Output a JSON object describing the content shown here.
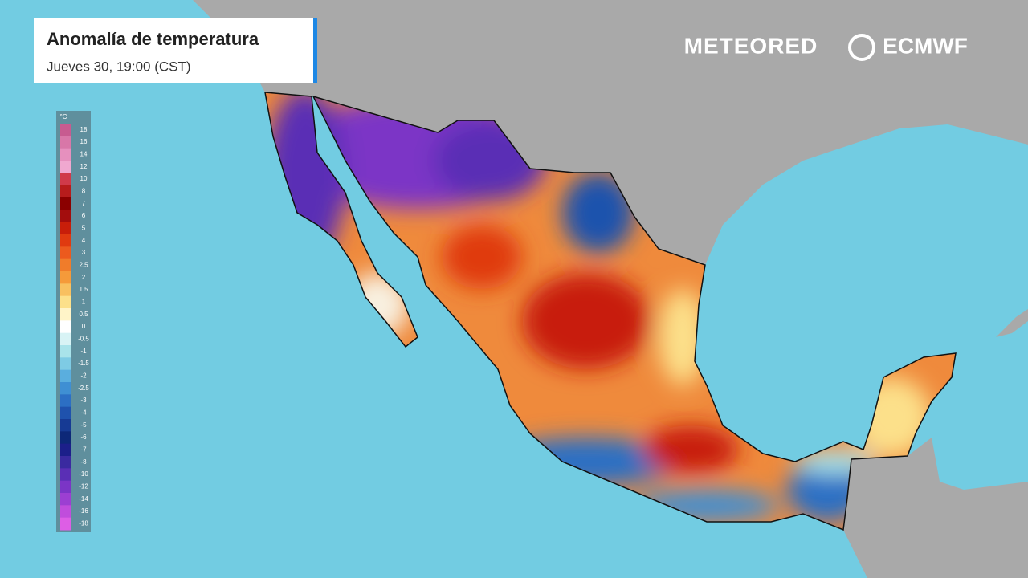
{
  "header": {
    "title": "Anomalía de temperatura",
    "subtitle": "Jueves 30, 19:00 (CST)"
  },
  "logos": {
    "meteored": "METEORED",
    "ecmwf": "ECMWF"
  },
  "legend": {
    "unit": "°C",
    "steps": [
      {
        "value": 18,
        "color": "#c75b90"
      },
      {
        "value": 16,
        "color": "#d877a8"
      },
      {
        "value": 14,
        "color": "#e690be"
      },
      {
        "value": 12,
        "color": "#f0a8d0"
      },
      {
        "value": 10,
        "color": "#d03a4a"
      },
      {
        "value": 8,
        "color": "#b71c1c"
      },
      {
        "value": 7,
        "color": "#8b0000"
      },
      {
        "value": 6,
        "color": "#a30d0d"
      },
      {
        "value": 5,
        "color": "#c81e0a"
      },
      {
        "value": 4,
        "color": "#e03a10"
      },
      {
        "value": 3,
        "color": "#ec5a1e"
      },
      {
        "value": 2.5,
        "color": "#f07c2a"
      },
      {
        "value": 2,
        "color": "#f59a3a"
      },
      {
        "value": 1.5,
        "color": "#f8c060"
      },
      {
        "value": 1,
        "color": "#fce08a"
      },
      {
        "value": 0.5,
        "color": "#fff4c8"
      },
      {
        "value": 0,
        "color": "#ffffff"
      },
      {
        "value": -0.5,
        "color": "#d8f3f5"
      },
      {
        "value": -1,
        "color": "#a9e3ea"
      },
      {
        "value": -1.5,
        "color": "#7ecbe4"
      },
      {
        "value": -2,
        "color": "#5aaede"
      },
      {
        "value": -2.5,
        "color": "#3f8fd3"
      },
      {
        "value": -3,
        "color": "#2c6fc4"
      },
      {
        "value": -4,
        "color": "#1f52ad"
      },
      {
        "value": -5,
        "color": "#163a94"
      },
      {
        "value": -6,
        "color": "#0d2878"
      },
      {
        "value": -7,
        "color": "#1c1f8a"
      },
      {
        "value": -8,
        "color": "#3a2aa0"
      },
      {
        "value": -10,
        "color": "#5a2fb5"
      },
      {
        "value": -12,
        "color": "#7b35c6"
      },
      {
        "value": -14,
        "color": "#9c3fd2"
      },
      {
        "value": -16,
        "color": "#c04ddc"
      },
      {
        "value": -18,
        "color": "#dd5ee5"
      }
    ]
  }
}
